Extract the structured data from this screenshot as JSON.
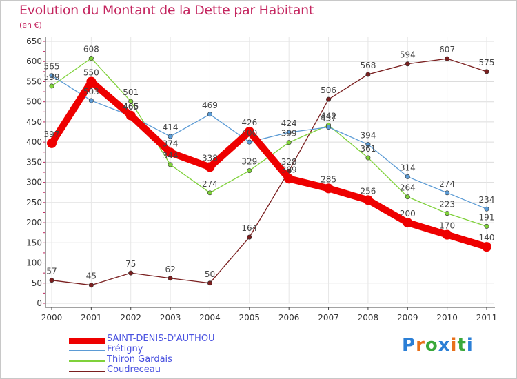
{
  "title": "Evolution du Montant de la Dette par Habitant",
  "unit": "(en €)",
  "logo": {
    "text": "Proxiti",
    "colors": [
      "#2b7fd6",
      "#e8701a",
      "#3aa83a",
      "#2b7fd6",
      "#e8701a",
      "#3aa83a",
      "#2b7fd6"
    ]
  },
  "chart_data": {
    "type": "line",
    "title": "Evolution du Montant de la Dette par Habitant",
    "ylabel": "(en €)",
    "xlabel": "",
    "x": [
      "2000",
      "2001",
      "2002",
      "2003",
      "2004",
      "2005",
      "2006",
      "2007",
      "2008",
      "2009",
      "2010",
      "2011"
    ],
    "ylim": [
      0,
      650
    ],
    "yticks": [
      0,
      50,
      100,
      150,
      200,
      250,
      300,
      350,
      400,
      450,
      500,
      550,
      600,
      650
    ],
    "grid": true,
    "legend_position": "bottom-left",
    "series": [
      {
        "name": "Coudreceau",
        "color": "#7a1f1f",
        "values": [
          57,
          45,
          75,
          62,
          50,
          164,
          328,
          506,
          568,
          594,
          607,
          575
        ]
      },
      {
        "name": "Thiron Gardais",
        "color": "#7fd13a",
        "values": [
          539,
          608,
          501,
          344,
          274,
          329,
          399,
          442,
          361,
          264,
          223,
          191
        ]
      },
      {
        "name": "Frétigny",
        "color": "#5b9bd5",
        "values": [
          565,
          503,
          465,
          414,
          469,
          400,
          424,
          437,
          394,
          314,
          274,
          234
        ]
      },
      {
        "name": "SAINT-DENIS-D'AUTHOU",
        "color": "#ee0000",
        "values": [
          397,
          550,
          466,
          374,
          338,
          426,
          309,
          285,
          256,
          200,
          170,
          140
        ]
      }
    ],
    "legend_order": [
      "SAINT-DENIS-D'AUTHOU",
      "Frétigny",
      "Thiron Gardais",
      "Coudreceau"
    ]
  }
}
